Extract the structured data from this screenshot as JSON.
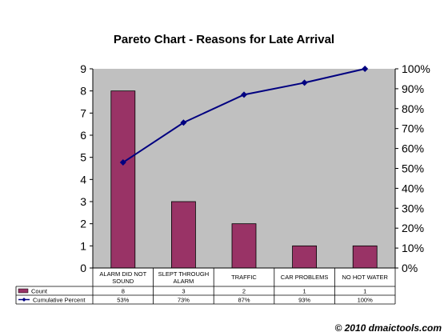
{
  "chart_data": {
    "type": "bar",
    "title": "Pareto Chart - Reasons for Late Arrival",
    "categories": [
      [
        "ALARM DID NOT",
        "SOUND"
      ],
      [
        "SLEPT THROUGH",
        "ALARM"
      ],
      [
        "TRAFFIC"
      ],
      [
        "CAR PROBLEMS"
      ],
      [
        "NO HOT WATER"
      ]
    ],
    "series": [
      {
        "name": "Count",
        "type": "bar",
        "axis": "left",
        "values": [
          8,
          3,
          2,
          1,
          1
        ],
        "labels": [
          "8",
          "3",
          "2",
          "1",
          "1"
        ]
      },
      {
        "name": "Cumulative Percent",
        "type": "line",
        "axis": "right",
        "values": [
          53,
          73,
          87,
          93,
          100
        ],
        "labels": [
          "53%",
          "73%",
          "87%",
          "93%",
          "100%"
        ]
      }
    ],
    "ylim_left": [
      0,
      9
    ],
    "yticks_left": [
      "0",
      "1",
      "2",
      "3",
      "4",
      "5",
      "6",
      "7",
      "8",
      "9"
    ],
    "ylim_right": [
      0,
      100
    ],
    "yticks_right": [
      "0%",
      "10%",
      "20%",
      "30%",
      "40%",
      "50%",
      "60%",
      "70%",
      "80%",
      "90%",
      "100%"
    ],
    "grid": false,
    "legend": "data-table-below",
    "colors": {
      "bar": "#993366",
      "line": "#000080",
      "plot_bg": "#c0c0c0"
    }
  },
  "footer": {
    "copyright": "© 2010 dmaictools.com"
  }
}
